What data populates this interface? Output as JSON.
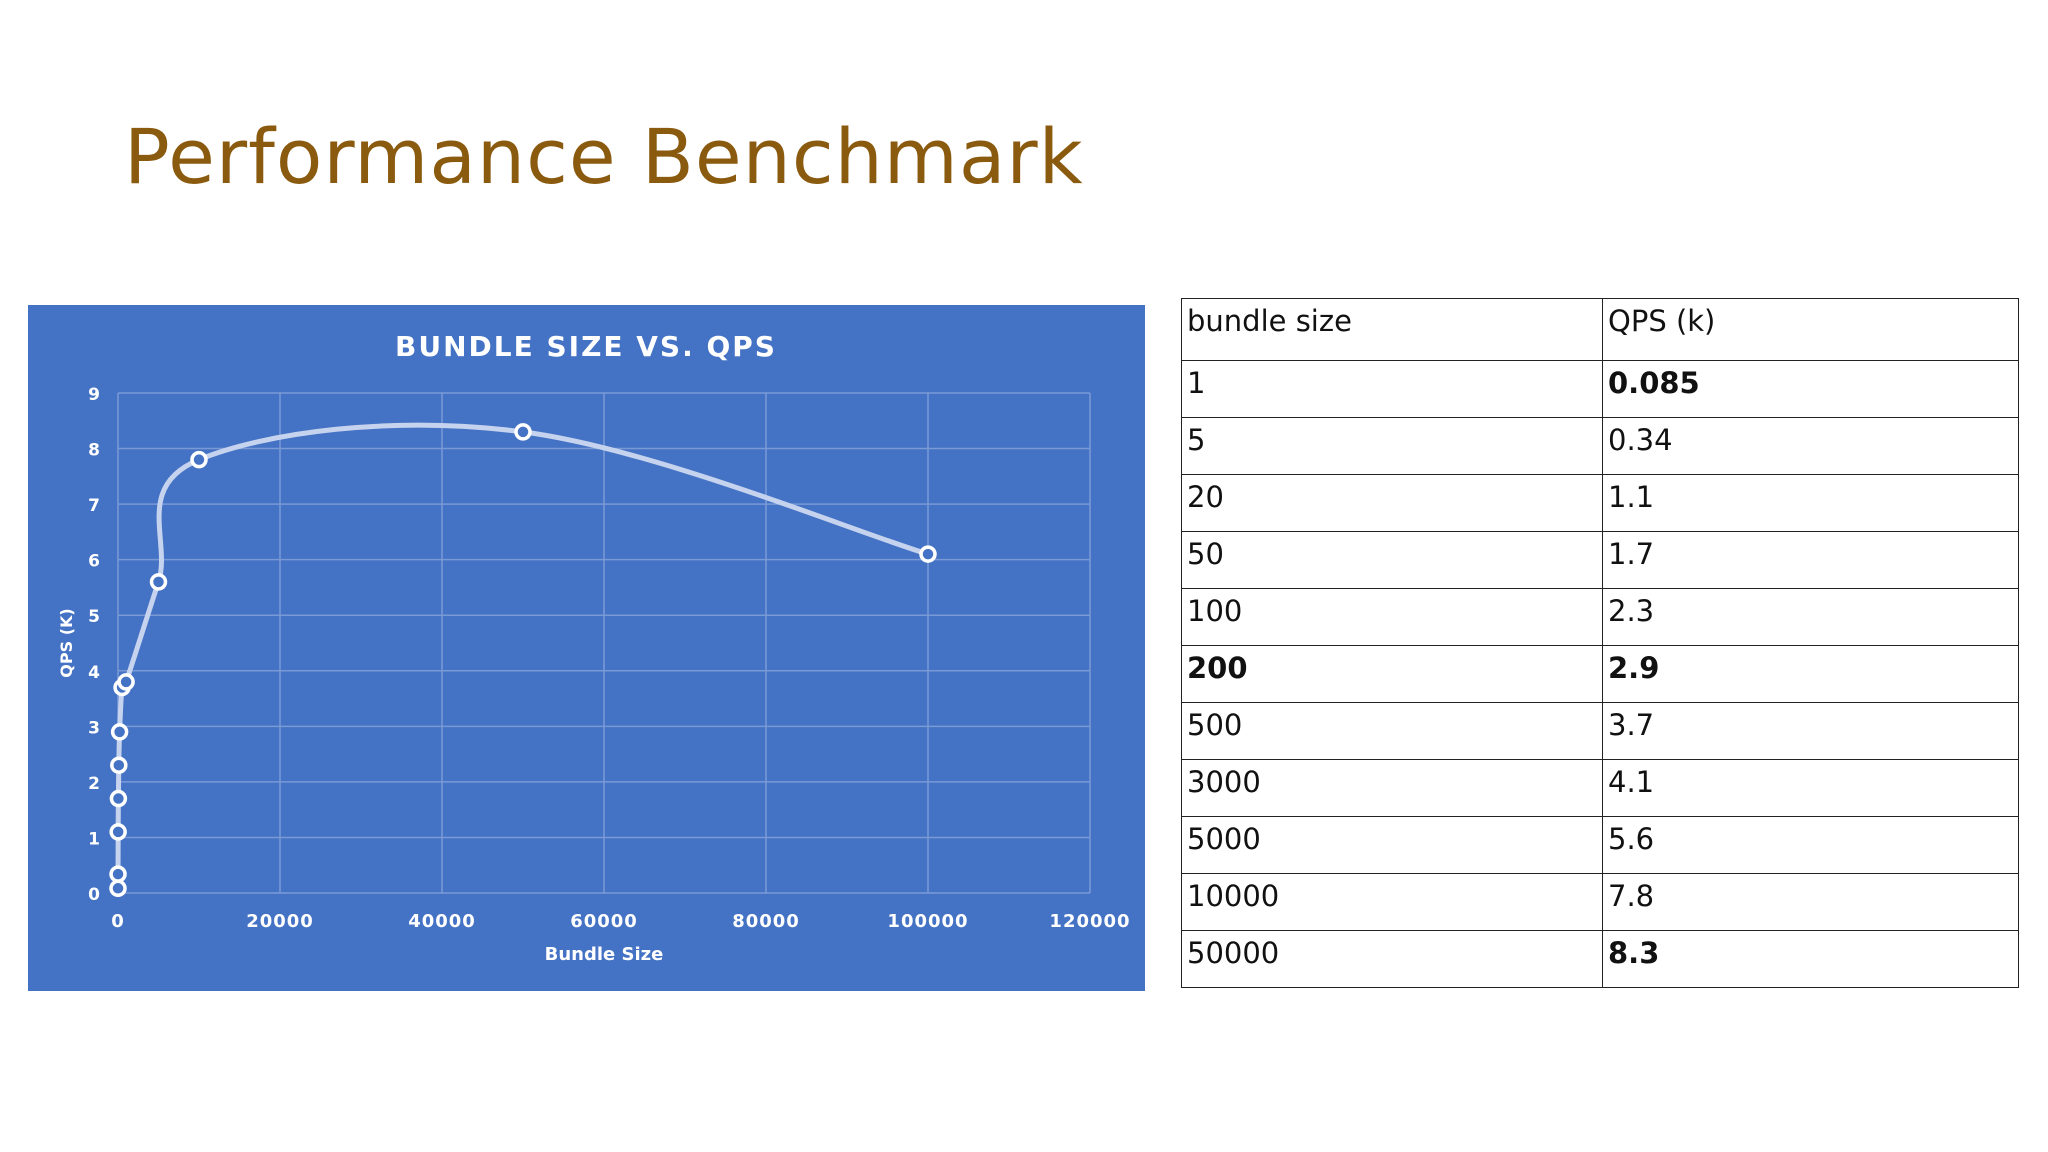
{
  "slide": {
    "title": "Performance Benchmark"
  },
  "table": {
    "headers": [
      "bundle size",
      "QPS (k)"
    ],
    "rows": [
      {
        "size": "1",
        "qps": "0.085",
        "size_bold": false,
        "qps_bold": true
      },
      {
        "size": "5",
        "qps": "0.34",
        "size_bold": false,
        "qps_bold": false
      },
      {
        "size": "20",
        "qps": "1.1",
        "size_bold": false,
        "qps_bold": false
      },
      {
        "size": "50",
        "qps": "1.7",
        "size_bold": false,
        "qps_bold": false
      },
      {
        "size": "100",
        "qps": "2.3",
        "size_bold": false,
        "qps_bold": false
      },
      {
        "size": "200",
        "qps": "2.9",
        "size_bold": true,
        "qps_bold": true
      },
      {
        "size": "500",
        "qps": "3.7",
        "size_bold": false,
        "qps_bold": false
      },
      {
        "size": "3000",
        "qps": "4.1",
        "size_bold": false,
        "qps_bold": false
      },
      {
        "size": "5000",
        "qps": "5.6",
        "size_bold": false,
        "qps_bold": false
      },
      {
        "size": "10000",
        "qps": "7.8",
        "size_bold": false,
        "qps_bold": false
      },
      {
        "size": "50000",
        "qps": "8.3",
        "size_bold": false,
        "qps_bold": true
      }
    ]
  },
  "chart_data": {
    "type": "scatter",
    "title": "BUNDLE SIZE VS. QPS",
    "xlabel": "Bundle Size",
    "ylabel": "QPS (K)",
    "xlim": [
      0,
      120000
    ],
    "ylim": [
      0,
      9
    ],
    "xticks": [
      0,
      20000,
      40000,
      60000,
      80000,
      100000,
      120000
    ],
    "yticks": [
      0,
      1,
      2,
      3,
      4,
      5,
      6,
      7,
      8,
      9
    ],
    "grid": true,
    "smooth_line": true,
    "colors": {
      "background": "#4472c4",
      "line": "#c6d3ee",
      "marker_fill": "#4472c4",
      "marker_stroke": "#ffffff",
      "text": "#ffffff",
      "grid": "#7a9ad6"
    },
    "series": [
      {
        "x": [
          1,
          5,
          20,
          50,
          100,
          200,
          500,
          1000,
          5000,
          10000,
          50000,
          100000
        ],
        "y": [
          0.085,
          0.34,
          1.1,
          1.7,
          2.3,
          2.9,
          3.7,
          3.8,
          5.6,
          7.8,
          8.3,
          6.1
        ]
      }
    ]
  }
}
